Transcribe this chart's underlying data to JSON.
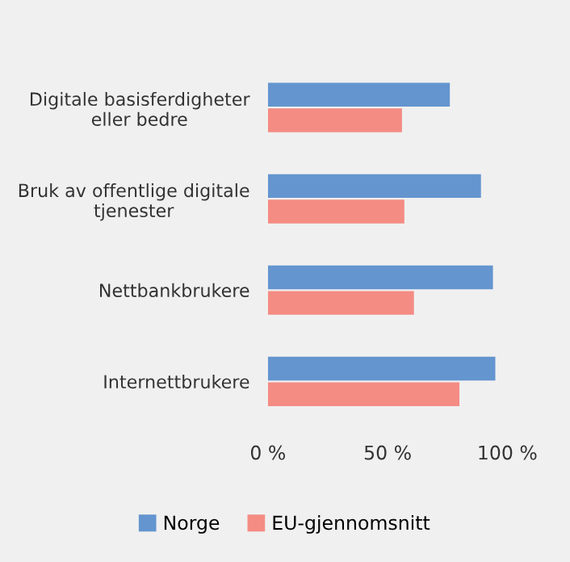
{
  "chart_data": {
    "type": "bar",
    "orientation": "horizontal",
    "categories": [
      "Digitale basisferdigheter eller bedre",
      "Bruk av offentlige digitale tjenester",
      "Nettbankbrukere",
      "Internettbrukere"
    ],
    "series": [
      {
        "name": "Norge",
        "color": "#6495cf",
        "values": [
          76,
          89,
          94,
          95
        ]
      },
      {
        "name": "EU-gjennomsnitt",
        "color": "#f48c84",
        "values": [
          56,
          57,
          61,
          80
        ]
      }
    ],
    "xlim": [
      0,
      100
    ],
    "xticks": [
      {
        "value": 0,
        "label": "0 %"
      },
      {
        "value": 50,
        "label": "50 %"
      },
      {
        "value": 100,
        "label": "100 %"
      }
    ],
    "grid": false,
    "legend": "bottom"
  }
}
